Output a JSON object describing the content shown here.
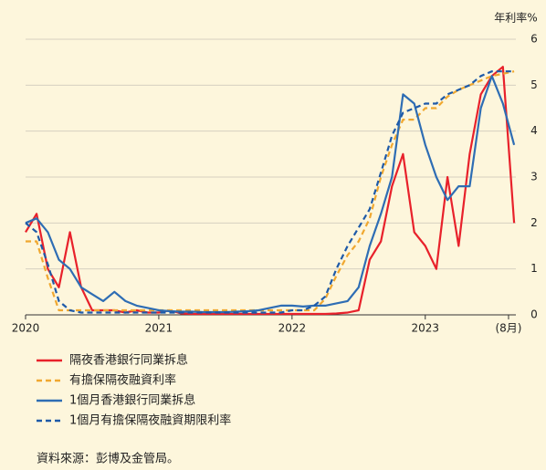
{
  "chart_data": {
    "type": "line",
    "y_label": "年利率%",
    "source": "資料來源：彭博及金管局。",
    "xlim": [
      2020,
      2023.68
    ],
    "xticks": [
      2020,
      2021,
      2022,
      2023,
      {
        "value": 2023.625,
        "label": "(8月)"
      }
    ],
    "ylim": [
      0,
      6
    ],
    "yticks": [
      0,
      1,
      2,
      3,
      4,
      5,
      6
    ],
    "grid": true,
    "x": [
      2020,
      2020.083,
      2020.167,
      2020.25,
      2020.333,
      2020.417,
      2020.5,
      2020.583,
      2020.667,
      2020.75,
      2020.833,
      2020.917,
      2021,
      2021.083,
      2021.167,
      2021.25,
      2021.333,
      2021.417,
      2021.5,
      2021.583,
      2021.667,
      2021.75,
      2021.833,
      2021.917,
      2022,
      2022.083,
      2022.167,
      2022.25,
      2022.333,
      2022.417,
      2022.5,
      2022.583,
      2022.667,
      2022.75,
      2022.833,
      2022.917,
      2023,
      2023.083,
      2023.167,
      2023.25,
      2023.333,
      2023.417,
      2023.5,
      2023.583,
      2023.667
    ],
    "series": [
      {
        "name": "隔夜香港銀行同業拆息",
        "color": "#e8212b",
        "dashed": false,
        "values": [
          1.8,
          2.2,
          1.0,
          0.6,
          1.8,
          0.6,
          0.1,
          0.1,
          0.1,
          0.05,
          0.1,
          0.05,
          0.05,
          0.1,
          0.03,
          0.02,
          0.02,
          0.02,
          0.02,
          0.02,
          0.02,
          0.02,
          0.02,
          0.02,
          0.02,
          0.02,
          0.02,
          0.02,
          0.03,
          0.05,
          0.1,
          1.2,
          1.6,
          2.8,
          3.5,
          1.8,
          1.5,
          1.0,
          3.0,
          1.5,
          3.5,
          4.8,
          5.2,
          5.4,
          2.0
        ]
      },
      {
        "name": "有擔保隔夜融資利率",
        "color": "#f0a830",
        "dashed": true,
        "values": [
          1.6,
          1.6,
          0.8,
          0.1,
          0.1,
          0.1,
          0.1,
          0.1,
          0.1,
          0.1,
          0.1,
          0.1,
          0.1,
          0.1,
          0.1,
          0.1,
          0.1,
          0.1,
          0.1,
          0.1,
          0.1,
          0.1,
          0.1,
          0.1,
          0.1,
          0.1,
          0.1,
          0.35,
          0.85,
          1.3,
          1.6,
          2.1,
          3.0,
          3.7,
          4.25,
          4.25,
          4.5,
          4.5,
          4.75,
          4.9,
          5.0,
          5.1,
          5.2,
          5.25,
          5.3
        ]
      },
      {
        "name": "1個月香港銀行同業拆息",
        "color": "#2e6db4",
        "dashed": false,
        "values": [
          2.0,
          2.1,
          1.8,
          1.2,
          1.0,
          0.6,
          0.45,
          0.3,
          0.5,
          0.3,
          0.2,
          0.15,
          0.1,
          0.08,
          0.07,
          0.07,
          0.06,
          0.06,
          0.06,
          0.07,
          0.08,
          0.1,
          0.15,
          0.2,
          0.2,
          0.18,
          0.2,
          0.2,
          0.25,
          0.3,
          0.6,
          1.5,
          2.2,
          3.0,
          4.8,
          4.6,
          3.7,
          3.0,
          2.5,
          2.8,
          2.8,
          4.5,
          5.2,
          4.6,
          3.7
        ]
      },
      {
        "name": "1個月有擔保隔夜融資期限利率",
        "color": "#1e5aa8",
        "dashed": true,
        "values": [
          2.0,
          1.8,
          1.1,
          0.3,
          0.1,
          0.05,
          0.05,
          0.05,
          0.05,
          0.05,
          0.05,
          0.05,
          0.05,
          0.05,
          0.05,
          0.05,
          0.05,
          0.05,
          0.05,
          0.05,
          0.05,
          0.05,
          0.05,
          0.05,
          0.1,
          0.1,
          0.2,
          0.4,
          1.0,
          1.5,
          1.9,
          2.3,
          3.1,
          3.9,
          4.4,
          4.5,
          4.6,
          4.6,
          4.8,
          4.9,
          5.0,
          5.2,
          5.3,
          5.3,
          5.3
        ]
      }
    ]
  }
}
